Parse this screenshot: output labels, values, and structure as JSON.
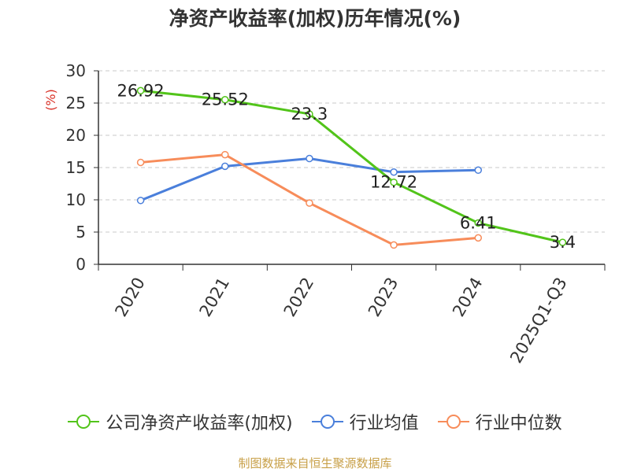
{
  "chart_data": {
    "type": "line",
    "title": "净资产收益率(加权)历年情况(%)",
    "ylabel": "(%)",
    "xlabel": "",
    "ylim": [
      0,
      30
    ],
    "yticks": [
      0,
      5,
      10,
      15,
      20,
      25,
      30
    ],
    "grid": true,
    "legend_position": "bottom",
    "categories": [
      "2020",
      "2021",
      "2022",
      "2023",
      "2024",
      "2025Q1-Q3"
    ],
    "series": [
      {
        "name": "公司净资产收益率(加权)",
        "color": "#52c41a",
        "labels": true,
        "values": [
          26.92,
          25.52,
          23.3,
          12.72,
          6.41,
          3.4
        ]
      },
      {
        "name": "行业均值",
        "color": "#4a7fdb",
        "labels": false,
        "values": [
          9.9,
          15.2,
          16.4,
          14.3,
          14.6,
          null
        ]
      },
      {
        "name": "行业中位数",
        "color": "#f78c5a",
        "labels": false,
        "values": [
          15.8,
          17.0,
          9.5,
          3.0,
          4.1,
          null
        ]
      }
    ],
    "source": "制图数据来自恒生聚源数据库"
  }
}
